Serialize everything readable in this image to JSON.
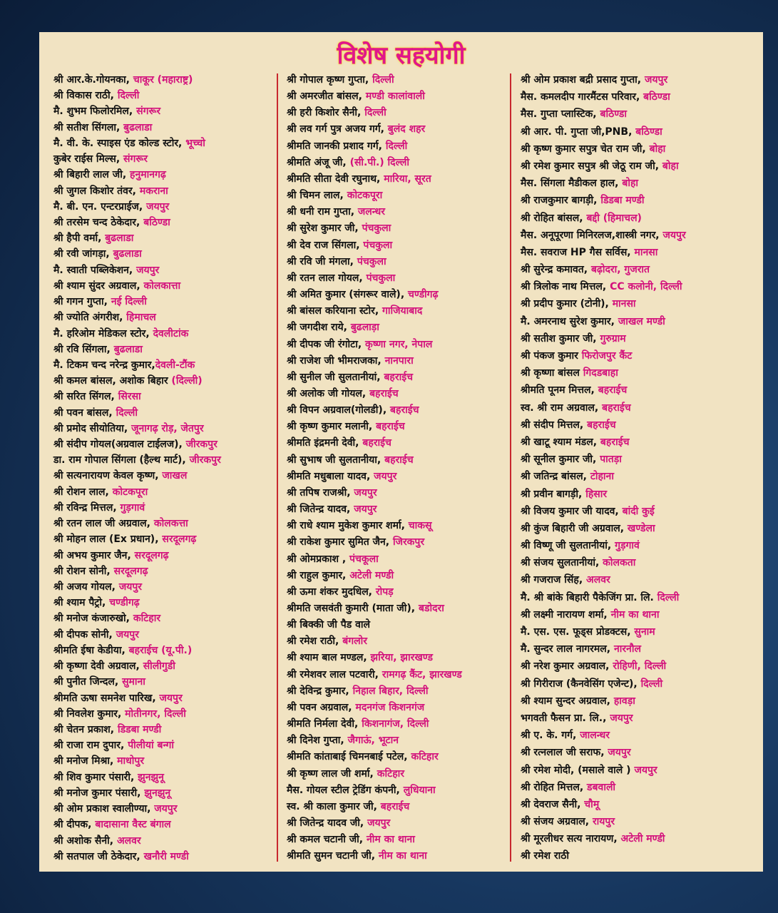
{
  "title": "विशेष सहयोगी",
  "columns": [
    [
      {
        "name": "श्री आर.के.गोयनका, ",
        "place": "चाकूर (महाराष्ट्र)"
      },
      {
        "name": "श्री विकास राठी, ",
        "place": "दिल्ली"
      },
      {
        "name": "मै. शुभम फिलोरमिल, ",
        "place": "संगरूर"
      },
      {
        "name": "श्री सतीश सिंगला, ",
        "place": "बुढलाडा"
      },
      {
        "name": "मै. वी. के. स्पाइस एंड कोल्ड स्टोर, ",
        "place": "भूच्चो"
      },
      {
        "name": "कुबेर राईस मिल्स, ",
        "place": "संगरूर"
      },
      {
        "name": "श्री बिहारी लाल जी, ",
        "place": "हनुमानगढ़"
      },
      {
        "name": "श्री जुगल किशोर तंवर, ",
        "place": "मकराना"
      },
      {
        "name": "मै. बी. एन. एन्टरप्राईज, ",
        "place": "जयपुर"
      },
      {
        "name": "श्री तरसेम चन्द ठेकेदार, ",
        "place": "बठिण्डा"
      },
      {
        "name": "श्री हैपी वर्मा, ",
        "place": "बुढलाडा"
      },
      {
        "name": "श्री रवी जांगड़ा, ",
        "place": "बुढलाडा"
      },
      {
        "name": "मै. स्वाती पब्लिकेशन, ",
        "place": "जयपुर"
      },
      {
        "name": "श्री श्याम सुंदर अग्रवाल, ",
        "place": "कोलकात्ता"
      },
      {
        "name": "श्री गगन गुप्ता, ",
        "place": "नई दिल्ली"
      },
      {
        "name": "श्री ज्योति अंगरीश, ",
        "place": "हिमाचल"
      },
      {
        "name": "मै. हरिओम मेडिकल स्टोर, ",
        "place": "देवलीटांक"
      },
      {
        "name": "श्री रवि सिंगला, ",
        "place": "बुढलाडा"
      },
      {
        "name": "मै. टिकम चन्द नरेन्द्र कुमार,",
        "place": "देवली-टौंक"
      },
      {
        "name": "श्री कमल बांसल, अशोक बिहार ",
        "place": "(दिल्ली)"
      },
      {
        "name": "श्री सरित सिंगल, ",
        "place": "सिरसा"
      },
      {
        "name": "श्री पवन बांसल, ",
        "place": "दिल्ली"
      },
      {
        "name": "श्री प्रमोद सीयोतिया, ",
        "place": "जूनागढ़ रोड़, जेतपुर"
      },
      {
        "name": "श्री संदीप गोयल(अग्रवाल टाईलज), ",
        "place": "जीरकपुर"
      },
      {
        "name": "डा. राम गोपाल सिंगला (हैल्थ मार्ट), ",
        "place": "जीरकपुर"
      },
      {
        "name": "श्री सत्यनारायण केवल कृष्ण, ",
        "place": "जाखल"
      },
      {
        "name": "श्री रोशन लाल, ",
        "place": "कोटकपूरा"
      },
      {
        "name": "श्री रविन्द्र मित्तल, ",
        "place": "गुड़गावं"
      },
      {
        "name": "श्री रतन लाल जी अग्रवाल, ",
        "place": "कोलकत्ता"
      },
      {
        "name": "श्री मोहन लाल (Ex प्रधान), ",
        "place": "सरदूलगढ़"
      },
      {
        "name": "श्री अभय कुमार जैन, ",
        "place": "सरदूलगढ़"
      },
      {
        "name": "श्री रोशन सोनी, ",
        "place": "सरदूलगढ़"
      },
      {
        "name": "श्री अजय गोयल, ",
        "place": "जयपुर"
      },
      {
        "name": "श्री श्याम पैट्रो, ",
        "place": "चण्डीगढ़"
      },
      {
        "name": "श्री मनोज कंजारुखो, ",
        "place": "कटिहार"
      },
      {
        "name": "श्री दीपक सोनी, ",
        "place": "जयपुर"
      },
      {
        "name": "श्रीमति ईषा केडीया, ",
        "place": "बहराईच (यू.पी.)"
      },
      {
        "name": "श्री कृष्णा देवी अग्रवाल, ",
        "place": "सीलीगुडी"
      },
      {
        "name": "श्री पुनीत जिन्दल, ",
        "place": "सुमाना"
      },
      {
        "name": "श्रीमति ऊषा समनेश पारिख, ",
        "place": "जयपुर"
      },
      {
        "name": "श्री निवलेश कुमार, ",
        "place": "मोतीनगर, दिल्ली"
      },
      {
        "name": "श्री चेतन प्रकाश, ",
        "place": "डिडबा मण्डी"
      },
      {
        "name": "श्री राजा राम दुपार, ",
        "place": "पीलीयां बन्गां"
      },
      {
        "name": "श्री मनोज मिश्रा, ",
        "place": "माधोपुर"
      },
      {
        "name": "श्री शिव कुमार पंसारी, ",
        "place": "झुनझुनू"
      },
      {
        "name": "श्री मनोज कुमार पंसारी, ",
        "place": "झुनझुनू"
      },
      {
        "name": "श्री ओम प्रकाश स्वालीण्या, ",
        "place": "जयपुर"
      },
      {
        "name": "श्री दीपक, ",
        "place": "बादासाना वैस्ट बंगाल"
      },
      {
        "name": "श्री अशोक सैनी, ",
        "place": "अलवर"
      },
      {
        "name": "श्री सतपाल जी ठेकेदार, ",
        "place": "खनौरी मण्डी"
      }
    ],
    [
      {
        "name": "श्री गोपाल कृष्ण गुप्ता, ",
        "place": "दिल्ली"
      },
      {
        "name": "श्री अमरजीत बांसल, ",
        "place": "मण्डी कालांवाली"
      },
      {
        "name": "श्री हरी किशोर सैनी, ",
        "place": "दिल्ली"
      },
      {
        "name": "श्री लव गर्ग पुत्र अजय गर्ग, ",
        "place": "बुलंद शहर"
      },
      {
        "name": "श्रीमति जानकी प्रशाद गर्ग, ",
        "place": "दिल्ली"
      },
      {
        "name": "श्रीमति अंजू जी, ",
        "place": "(सी.पी.) दिल्ली"
      },
      {
        "name": "श्रीमति सीता देवी रघुनाथ, ",
        "place": "मारिया, सूरत"
      },
      {
        "name": "श्री चिमन लाल, ",
        "place": "कोटकपूरा"
      },
      {
        "name": "श्री धनी राम गुप्ता, ",
        "place": "जलन्धर"
      },
      {
        "name": "श्री सुरेश कुमार जी, ",
        "place": "पंचकुला"
      },
      {
        "name": "श्री देव राज सिंगला, ",
        "place": "पंचकुला"
      },
      {
        "name": "श्री रवि जी मंगला, ",
        "place": "पंचकुला"
      },
      {
        "name": "श्री रतन लाल गोयल, ",
        "place": "पंचकुला"
      },
      {
        "name": "श्री अमित कुमार (संगरूर वाले), ",
        "place": "चण्डीगढ़"
      },
      {
        "name": "श्री बांसल करियाना स्टोर, ",
        "place": "गाजियाबाद"
      },
      {
        "name": "श्री जगदीश राये, ",
        "place": "बुढलाड़ा"
      },
      {
        "name": "श्री दीपक जी रंगोटा, ",
        "place": "कृष्णा नगर, नेपाल"
      },
      {
        "name": "श्री राजेश जी भीमराजका, ",
        "place": "नानपारा"
      },
      {
        "name": "श्री सुनील जी सुलतानीयां, ",
        "place": "बहराईच"
      },
      {
        "name": "श्री अलोक जी गोयल, ",
        "place": "बहराईच"
      },
      {
        "name": "श्री विपन अग्रवाल(गोलडी), ",
        "place": "बहराईच"
      },
      {
        "name": "श्री कृष्ण कुमार मलानी, ",
        "place": "बहराईच"
      },
      {
        "name": "श्रीमति इंद्रमनी देवी, ",
        "place": "बहराईच"
      },
      {
        "name": "श्री सुभाष जी सुलतानीया, ",
        "place": "बहराईच"
      },
      {
        "name": "श्रीमति मधुबाला यादव, ",
        "place": "जयपुर"
      },
      {
        "name": "श्री तपिष राजश्री, ",
        "place": "जयपुर"
      },
      {
        "name": "श्री जितेन्द्र यादव, ",
        "place": "जयपुर"
      },
      {
        "name": "श्री राधे श्याम मुकेश कुमार शर्मा, ",
        "place": "चाकसू"
      },
      {
        "name": "श्री राकेश कुमार सुमित जैन, ",
        "place": "जिरकपुर"
      },
      {
        "name": "श्री ओमप्रकाश , ",
        "place": "पंचकूला"
      },
      {
        "name": "श्री राहुल कुमार, ",
        "place": "अटेली मण्डी"
      },
      {
        "name": "श्री ऊमा शंकर मुदधिल, ",
        "place": "रोपड़"
      },
      {
        "name": "श्रीमति जसवंती कुमारी (माता जी), ",
        "place": "बडोदरा"
      },
      {
        "name": "श्री बिक्की जी पैड वाले"
      },
      {
        "name": "श्री रमेश राठी, ",
        "place": "बंगलोर"
      },
      {
        "name": "श्री श्याम बाल मण्डल, ",
        "place": "झरिया, झारखण्ड"
      },
      {
        "name": "श्री रमेशवर लाल पटवारी, ",
        "place": "रामगढ़ कैंट, झारखण्ड"
      },
      {
        "name": "श्री देविन्द्र कुमार, ",
        "place": "निहाल बिहार, दिल्ली"
      },
      {
        "name": "श्री पवन अग्रवाल, ",
        "place": "मदनगंज किशनगंज"
      },
      {
        "name": "श्रीमति निर्मला देवी, ",
        "place": "किशनागंज, दिल्ली"
      },
      {
        "name": "श्री दिनेश गुप्ता, ",
        "place": "जैगाऊं, भूटान"
      },
      {
        "name": "श्रीमति कांताबाई चिमनबाई पटेल, ",
        "place": "कटिहार"
      },
      {
        "name": "श्री कृष्ण लाल जी शर्मा, ",
        "place": "कटिहार"
      },
      {
        "name": "मैस. गोयल स्टील ट्रेडिंग कंपनी, ",
        "place": "लुधियाना"
      },
      {
        "name": "स्व. श्री काला कुमार जी, ",
        "place": "बहराईच"
      },
      {
        "name": "श्री जितेन्द्र यादव जी, ",
        "place": "जयपुर"
      },
      {
        "name": "श्री कमल चटानी जी, ",
        "place": "नीम का थाना"
      },
      {
        "name": "श्रीमति सुमन चटानी जी, ",
        "place": "नीम का थाना"
      }
    ],
    [
      {
        "name": "श्री ओम प्रकाश बद्री प्रसाद गुप्ता, ",
        "place": "जयपुर"
      },
      {
        "name": "मैस. कमलदीप गारमैंटस परिवार, ",
        "place": "बठिण्डा"
      },
      {
        "name": "मैस. गुप्ता प्लास्टिक, ",
        "place": "बठिण्डा"
      },
      {
        "name": "श्री आर. पी. गुप्ता जी,PNB, ",
        "place": "बठिण्डा"
      },
      {
        "name": "श्री कृष्ण कुमार सपुत्र चेत राम जी, ",
        "place": "बोहा"
      },
      {
        "name": "श्री रमेश कुमार सपुत्र श्री जेठू राम जी, ",
        "place": "बोहा"
      },
      {
        "name": "मैस. सिंगला मैडीकल हाल, ",
        "place": "बोहा"
      },
      {
        "name": "श्री राजकुमार बागड़ी, ",
        "place": "डिडबा मण्डी"
      },
      {
        "name": "श्री रोहित बांसल, ",
        "place": "बद्दी (हिमाचल)"
      },
      {
        "name": "मैस. अनूपूरणा मिनिरलज,शास्त्री नगर, ",
        "place": "जयपुर"
      },
      {
        "name": "मैस. सवराज HP गैस सर्विस, ",
        "place": "मानसा"
      },
      {
        "name": "श्री सुरेन्द्र कमावत, ",
        "place": "बढ़ोदरा, गुजरात"
      },
      {
        "name": "श्री त्रिलोक नाथ मित्तल, ",
        "place": "CC कलोनी, दिल्ली"
      },
      {
        "name": "श्री प्रदीप कुमार (टोनी), ",
        "place": "मानसा"
      },
      {
        "name": "मै. अमरनाथ सुरेश कुमार, ",
        "place": "जाखल मण्डी"
      },
      {
        "name": "श्री सतीश कुमार जी, ",
        "place": "गुरुग्राम"
      },
      {
        "name": "श्री पंकज कुमार ",
        "place": "फिरोजपुर कैंट"
      },
      {
        "name": "श्री कृष्णा बांसल ",
        "place": "गिदडबाहा"
      },
      {
        "name": "श्रीमति पूनम मित्तल, ",
        "place": "बहराईच"
      },
      {
        "name": "स्व. श्री राम अग्रवाल, ",
        "place": "बहराईच"
      },
      {
        "name": "श्री संदीप मित्तल, ",
        "place": "बहराईच"
      },
      {
        "name": "श्री खाटू श्याम मंडल, ",
        "place": "बहराईच"
      },
      {
        "name": "श्री सूनील कुमार जी, ",
        "place": "पातड़ा"
      },
      {
        "name": "श्री जतिन्द्र बांसल, ",
        "place": "टोहाना"
      },
      {
        "name": "श्री प्रवीन बागड़ी, ",
        "place": "हिसार"
      },
      {
        "name": "श्री विजय कुमार जी यादव, ",
        "place": "बांदी कुई"
      },
      {
        "name": "श्री कुंज बिहारी जी अग्रवाल, ",
        "place": "खण्डेला"
      },
      {
        "name": "श्री विष्णू जी सुलतानीयां, ",
        "place": "गुड़गावं"
      },
      {
        "name": "श्री संजय सुलतानीयां, ",
        "place": "कोलकता"
      },
      {
        "name": "श्री गजराज सिंह, ",
        "place": "अलवर"
      },
      {
        "name": "मै. श्री बांके बिहारी पैकेजिंग प्रा. लि. ",
        "place": "दिल्ली"
      },
      {
        "name": "श्री लक्ष्मी नारायण शर्मा, ",
        "place": "नीम का थाना"
      },
      {
        "name": "मै. एस. एस. फूड्स प्रोडक्टस, ",
        "place": "सुनाम"
      },
      {
        "name": "मै. सुन्दर लाल नागरमल, ",
        "place": "नारनौल"
      },
      {
        "name": "श्री नरेश कुमार अग्रवाल, ",
        "place": "रोहिणी, दिल्ली"
      },
      {
        "name": "श्री गिरीराज (कैनवेसिंग एजेन्ट), ",
        "place": "दिल्ली"
      },
      {
        "name": "श्री श्याम सुन्दर अग्रवाल, ",
        "place": "हावड़ा"
      },
      {
        "name": "भगवती फैसन प्रा. लि., ",
        "place": "जयपुर"
      },
      {
        "name": "श्री ए. के. गर्ग, ",
        "place": "जालन्धर"
      },
      {
        "name": "श्री रत्नलाल जी सराफ, ",
        "place": "जयपुर"
      },
      {
        "name": "श्री रमेश मोदी, (मसाले वाले ) ",
        "place": "जयपुर"
      },
      {
        "name": "श्री रोहित मित्तल, ",
        "place": "डबवाली"
      },
      {
        "name": "श्री देवराज सैनी, ",
        "place": "चौमू"
      },
      {
        "name": "श्री संजय अग्रवाल, ",
        "place": "रायपुर"
      },
      {
        "name": "श्री मूरलीधर सत्य नारायण, ",
        "place": "अटेली मण्डी"
      },
      {
        "name": "श्री रमेश राठी"
      }
    ]
  ]
}
